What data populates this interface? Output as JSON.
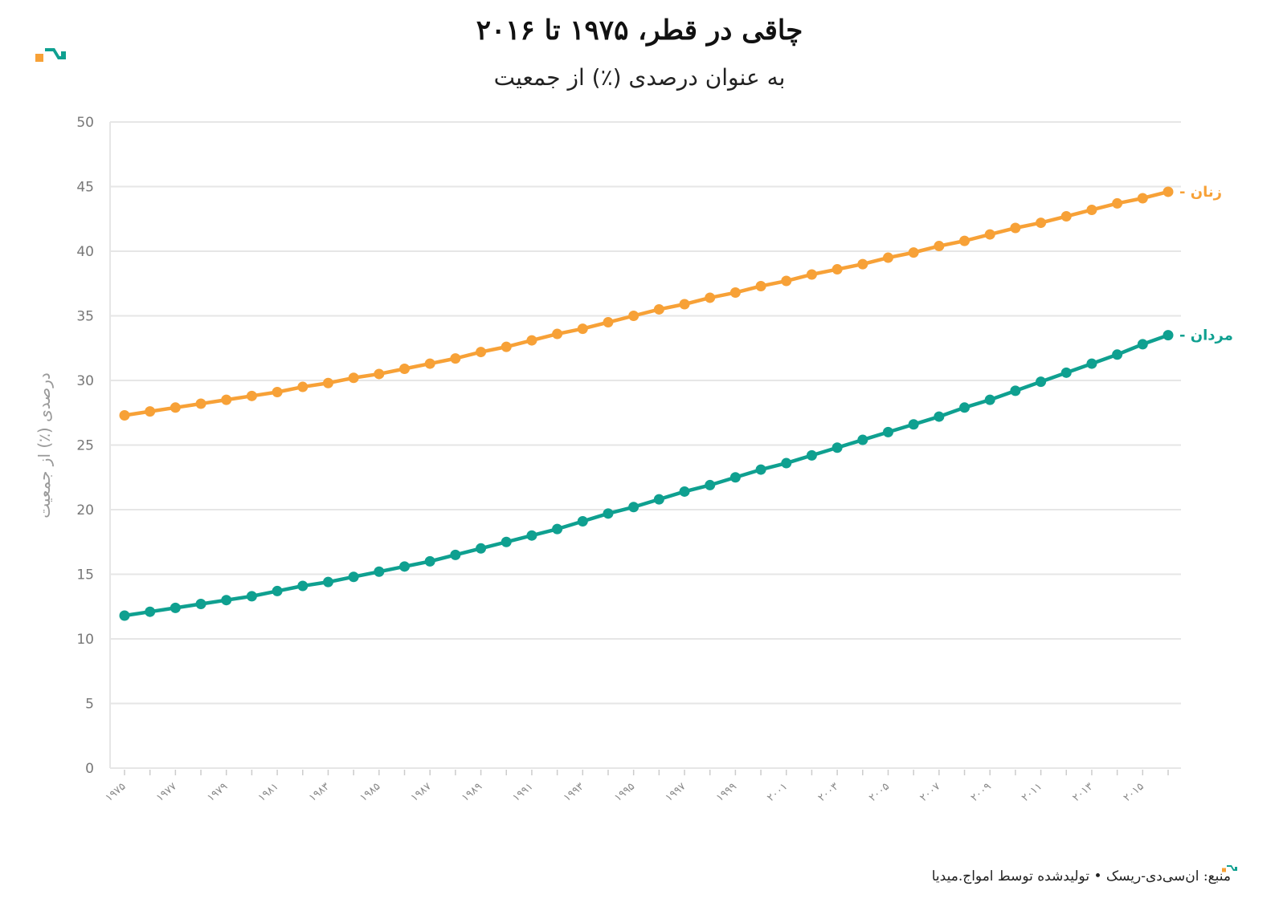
{
  "header": {
    "title": "چاقی در قطر، ۱۹۷۵ تا ۲۰۱۶",
    "subtitle": "به عنوان درصدی (٪) از جمعیت"
  },
  "footer": {
    "source": "منبع: ان‌سی‌دی-ریسک • تولیدشده توسط امواج.میدیا"
  },
  "colors": {
    "women": "#f7a137",
    "men": "#0fa090",
    "grid": "#e6e6e6",
    "logo_orange": "#f7a137",
    "logo_teal": "#0fa090"
  },
  "chart_data": {
    "type": "line",
    "title": "چاقی در قطر، ۱۹۷۵ تا ۲۰۱۶",
    "subtitle": "به عنوان درصدی (٪) از جمعیت",
    "ylabel": "درصدی (٪) از جمعیت",
    "xlabel": "",
    "ylim": [
      0,
      50
    ],
    "yticks": [
      0,
      5,
      10,
      15,
      20,
      25,
      30,
      35,
      40,
      45,
      50
    ],
    "grid": true,
    "x": [
      1975,
      1976,
      1977,
      1978,
      1979,
      1980,
      1981,
      1982,
      1983,
      1984,
      1985,
      1986,
      1987,
      1988,
      1989,
      1990,
      1991,
      1992,
      1993,
      1994,
      1995,
      1996,
      1997,
      1998,
      1999,
      2000,
      2001,
      2002,
      2003,
      2004,
      2005,
      2006,
      2007,
      2008,
      2009,
      2010,
      2011,
      2012,
      2013,
      2014,
      2015,
      2016
    ],
    "xtick_labels": [
      "۱۹۷۵",
      "۱۹۷۷",
      "۱۹۷۹",
      "۱۹۸۱",
      "۱۹۸۳",
      "۱۹۸۵",
      "۱۹۸۷",
      "۱۹۸۹",
      "۱۹۹۱",
      "۱۹۹۳",
      "۱۹۹۵",
      "۱۹۹۷",
      "۱۹۹۹",
      "۲۰۰۱",
      "۲۰۰۳",
      "۲۰۰۵",
      "۲۰۰۷",
      "۲۰۰۹",
      "۲۰۱۱",
      "۲۰۱۳",
      "۲۰۱۵"
    ],
    "xtick_values": [
      1975,
      1977,
      1979,
      1981,
      1983,
      1985,
      1987,
      1989,
      1991,
      1993,
      1995,
      1997,
      1999,
      2001,
      2003,
      2005,
      2007,
      2009,
      2011,
      2013,
      2015
    ],
    "series": [
      {
        "name": "زنان",
        "key": "women",
        "values": [
          27.3,
          27.6,
          27.9,
          28.2,
          28.5,
          28.8,
          29.1,
          29.5,
          29.8,
          30.2,
          30.5,
          30.9,
          31.3,
          31.7,
          32.2,
          32.6,
          33.1,
          33.6,
          34.0,
          34.5,
          35.0,
          35.5,
          35.9,
          36.4,
          36.8,
          37.3,
          37.7,
          38.2,
          38.6,
          39.0,
          39.5,
          39.9,
          40.4,
          40.8,
          41.3,
          41.8,
          42.2,
          42.7,
          43.2,
          43.7,
          44.1,
          44.6
        ]
      },
      {
        "name": "مردان",
        "key": "men",
        "values": [
          11.8,
          12.1,
          12.4,
          12.7,
          13.0,
          13.3,
          13.7,
          14.1,
          14.4,
          14.8,
          15.2,
          15.6,
          16.0,
          16.5,
          17.0,
          17.5,
          18.0,
          18.5,
          19.1,
          19.7,
          20.2,
          20.8,
          21.4,
          21.9,
          22.5,
          23.1,
          23.6,
          24.2,
          24.8,
          25.4,
          26.0,
          26.6,
          27.2,
          27.9,
          28.5,
          29.2,
          29.9,
          30.6,
          31.3,
          32.0,
          32.8,
          33.5
        ]
      }
    ]
  }
}
